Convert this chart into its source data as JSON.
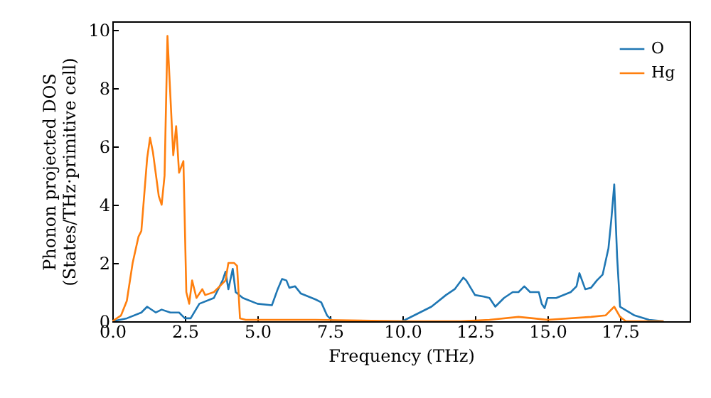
{
  "chart_data": {
    "type": "line",
    "xlabel": "Frequency (THz)",
    "ylabel": "Phonon projected DOS\n(States/THz·primitive cell)",
    "xlim": [
      0,
      19.9
    ],
    "ylim": [
      0,
      10.3
    ],
    "xticks": [
      {
        "value": 0,
        "label": "0.0"
      },
      2.5,
      {
        "value": 5,
        "label": "5.0"
      },
      7.5,
      {
        "value": 10,
        "label": "10.0"
      },
      12.5,
      {
        "value": 15,
        "label": "15.0"
      },
      17.5
    ],
    "yticks": [
      0,
      2,
      4,
      6,
      8,
      10
    ],
    "grid": false,
    "legend": "top right",
    "line_style": "solid",
    "marker": "none",
    "series": [
      {
        "name": "O",
        "color": "#1f77b4",
        "x": [
          0,
          0.5,
          1.0,
          1.2,
          1.5,
          1.7,
          2.0,
          2.3,
          2.5,
          2.7,
          3.0,
          3.5,
          3.8,
          3.9,
          4.0,
          4.15,
          4.25,
          4.5,
          5.0,
          5.5,
          5.7,
          5.85,
          6.0,
          6.1,
          6.3,
          6.5,
          7.0,
          7.2,
          7.4,
          7.6,
          10.0,
          10.5,
          11.0,
          11.5,
          11.8,
          12.1,
          12.2,
          12.5,
          12.8,
          13.0,
          13.2,
          13.5,
          13.8,
          14.0,
          14.2,
          14.4,
          14.7,
          14.8,
          14.9,
          15.0,
          15.3,
          15.8,
          16.0,
          16.1,
          16.3,
          16.5,
          16.7,
          16.9,
          17.1,
          17.2,
          17.3,
          17.4,
          17.5,
          18.0,
          18.5,
          19.0
        ],
        "values": [
          0,
          0.1,
          0.3,
          0.5,
          0.3,
          0.4,
          0.3,
          0.3,
          0.1,
          0.1,
          0.6,
          0.8,
          1.4,
          1.7,
          1.1,
          1.8,
          1.0,
          0.8,
          0.6,
          0.55,
          1.1,
          1.45,
          1.4,
          1.15,
          1.2,
          0.95,
          0.75,
          0.65,
          0.2,
          0,
          0,
          0.25,
          0.5,
          0.9,
          1.1,
          1.5,
          1.4,
          0.9,
          0.85,
          0.8,
          0.5,
          0.8,
          1.0,
          1.0,
          1.2,
          1.0,
          1.0,
          0.6,
          0.45,
          0.8,
          0.8,
          1.0,
          1.2,
          1.65,
          1.1,
          1.15,
          1.4,
          1.6,
          2.5,
          3.5,
          4.7,
          2.2,
          0.5,
          0.2,
          0.05,
          0
        ]
      },
      {
        "name": "Hg",
        "color": "#ff7f0e",
        "x": [
          0,
          0.3,
          0.5,
          0.7,
          0.9,
          1.0,
          1.2,
          1.3,
          1.4,
          1.6,
          1.7,
          1.8,
          1.9,
          2.1,
          2.2,
          2.3,
          2.45,
          2.55,
          2.65,
          2.75,
          2.9,
          3.1,
          3.2,
          3.5,
          3.7,
          3.9,
          4.0,
          4.2,
          4.3,
          4.4,
          4.6,
          7.0,
          10.0,
          12.0,
          13.0,
          14.0,
          14.5,
          15.0,
          16.5,
          17.0,
          17.3,
          17.5,
          17.7,
          19.0
        ],
        "values": [
          0,
          0.2,
          0.7,
          2.0,
          2.9,
          3.1,
          5.6,
          6.3,
          5.8,
          4.3,
          4.0,
          5.0,
          9.8,
          5.7,
          6.7,
          5.1,
          5.5,
          1.0,
          0.6,
          1.4,
          0.8,
          1.1,
          0.9,
          1.0,
          1.2,
          1.4,
          2.0,
          2.0,
          1.9,
          0.1,
          0.05,
          0.05,
          0,
          0,
          0.05,
          0.15,
          0.1,
          0.05,
          0.15,
          0.2,
          0.5,
          0.15,
          0,
          0
        ]
      }
    ]
  }
}
